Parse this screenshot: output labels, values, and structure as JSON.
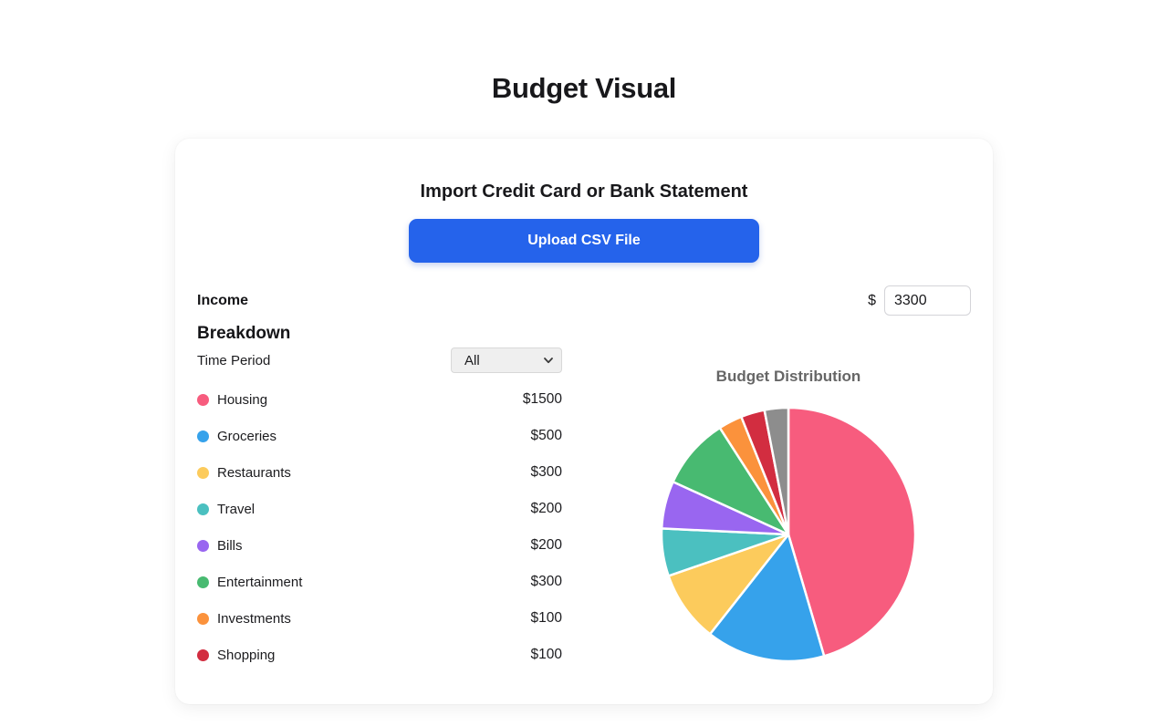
{
  "page": {
    "title": "Budget Visual"
  },
  "import_section": {
    "heading": "Import Credit Card or Bank Statement",
    "upload_button_label": "Upload CSV File"
  },
  "income": {
    "label": "Income",
    "currency_symbol": "$",
    "value": "3300"
  },
  "breakdown": {
    "heading": "Breakdown",
    "time_period_label": "Time Period",
    "time_period_selected": "All",
    "categories": [
      {
        "label": "Housing",
        "amount": "$1500",
        "color": "#F75C7E"
      },
      {
        "label": "Groceries",
        "amount": "$500",
        "color": "#36A2EB"
      },
      {
        "label": "Restaurants",
        "amount": "$300",
        "color": "#FCCB5C"
      },
      {
        "label": "Travel",
        "amount": "$200",
        "color": "#4BC0C0"
      },
      {
        "label": "Bills",
        "amount": "$200",
        "color": "#9966F0"
      },
      {
        "label": "Entertainment",
        "amount": "$300",
        "color": "#48BA71"
      },
      {
        "label": "Investments",
        "amount": "$100",
        "color": "#FB923C"
      },
      {
        "label": "Shopping",
        "amount": "$100",
        "color": "#D22D40"
      }
    ]
  },
  "chart_data": {
    "type": "pie",
    "title": "Budget Distribution",
    "start_angle_deg": 0,
    "direction": "clockwise",
    "total": 3300,
    "segments": [
      {
        "label": "Housing",
        "value": 1500,
        "color": "#F75C7E"
      },
      {
        "label": "Groceries",
        "value": 500,
        "color": "#36A2EB"
      },
      {
        "label": "Restaurants",
        "value": 300,
        "color": "#FCCB5C"
      },
      {
        "label": "Travel",
        "value": 200,
        "color": "#4BC0C0"
      },
      {
        "label": "Bills",
        "value": 200,
        "color": "#9966F0"
      },
      {
        "label": "Entertainment",
        "value": 300,
        "color": "#48BA71"
      },
      {
        "label": "Investments",
        "value": 100,
        "color": "#FB923C"
      },
      {
        "label": "Shopping",
        "value": 100,
        "color": "#D22D40"
      },
      {
        "label": "",
        "value": 100,
        "color": "#8D8D8D"
      }
    ]
  },
  "colors": {
    "accent_blue": "#2563EB",
    "chart_title_gray": "#666666"
  }
}
